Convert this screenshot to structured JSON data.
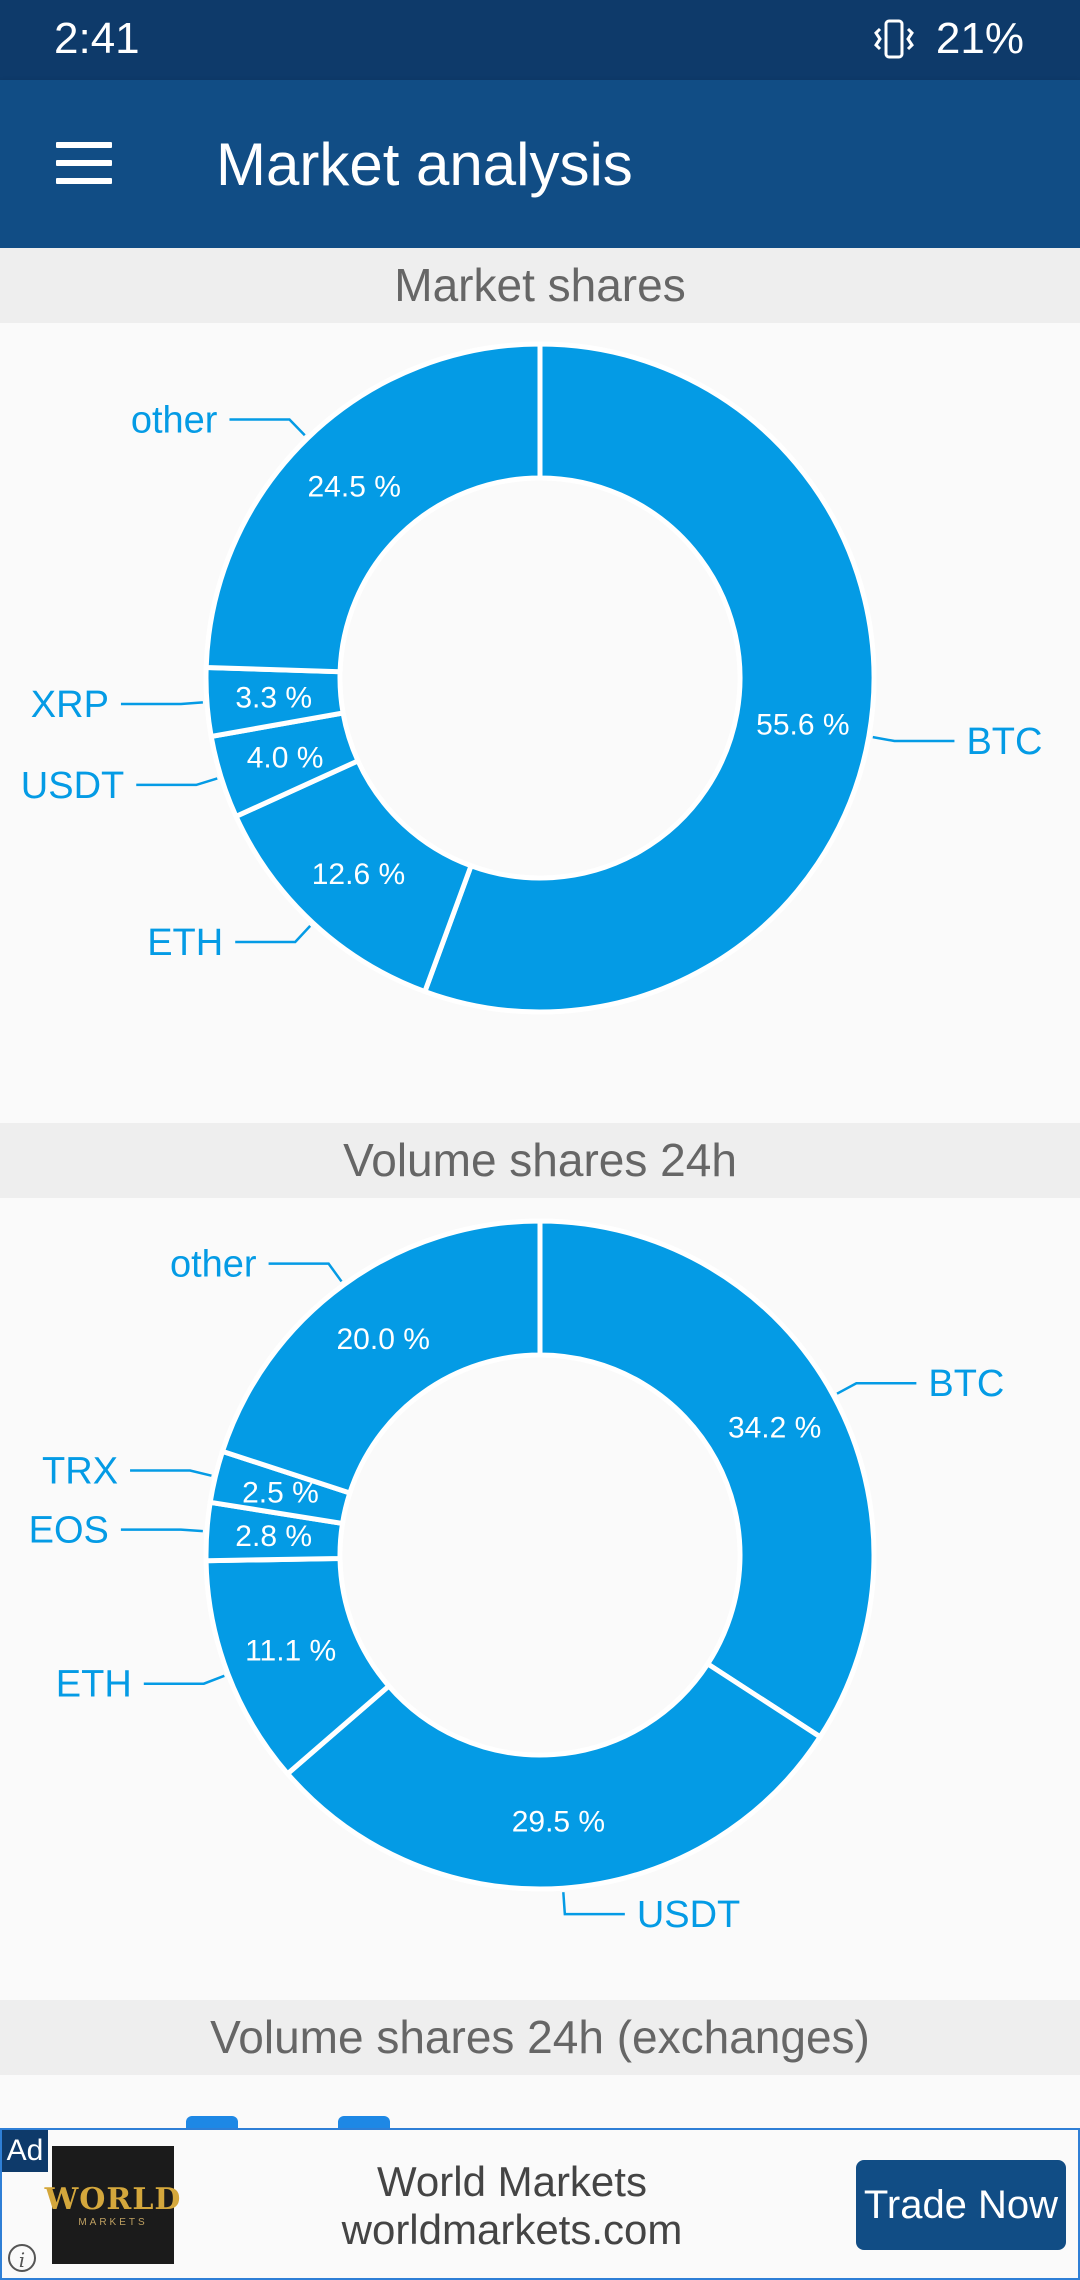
{
  "status_bar": {
    "time": "2:41",
    "battery": "21%",
    "icons": [
      "vibrate-icon"
    ]
  },
  "app_bar": {
    "title": "Market analysis",
    "menu_icon": "hamburger-menu-icon"
  },
  "colors": {
    "slice": "#049be5",
    "separator": "#ffffff",
    "label": "#049be5",
    "app_bar": "#114d85",
    "status_bar": "#0e3a6a"
  },
  "sections": {
    "market_shares": "Market shares",
    "volume_shares": "Volume shares 24h",
    "volume_exchanges": "Volume shares 24h (exchanges)"
  },
  "chart_data": [
    {
      "type": "pie",
      "title": "Market shares",
      "labels": [
        "BTC",
        "ETH",
        "USDT",
        "XRP",
        "other"
      ],
      "values": [
        55.6,
        12.6,
        4.0,
        3.3,
        24.5
      ],
      "value_labels": [
        "55.6 %",
        "12.6 %",
        "4.0 %",
        "3.3 %",
        "24.5 %"
      ],
      "donut": true
    },
    {
      "type": "pie",
      "title": "Volume shares 24h",
      "labels": [
        "BTC",
        "USDT",
        "ETH",
        "EOS",
        "TRX",
        "other"
      ],
      "values": [
        34.2,
        29.5,
        11.1,
        2.8,
        2.5,
        20.0
      ],
      "value_labels": [
        "34.2 %",
        "29.5 %",
        "11.1 %",
        "2.8 %",
        "2.5 %",
        "20.0 %"
      ],
      "donut": true
    }
  ],
  "ad": {
    "badge": "Ad",
    "info_icon": "info-icon",
    "logo_text": "WORLD",
    "logo_subtext": "MARKETS",
    "title": "World Markets",
    "url": "worldmarkets.com",
    "cta": "Trade Now"
  }
}
